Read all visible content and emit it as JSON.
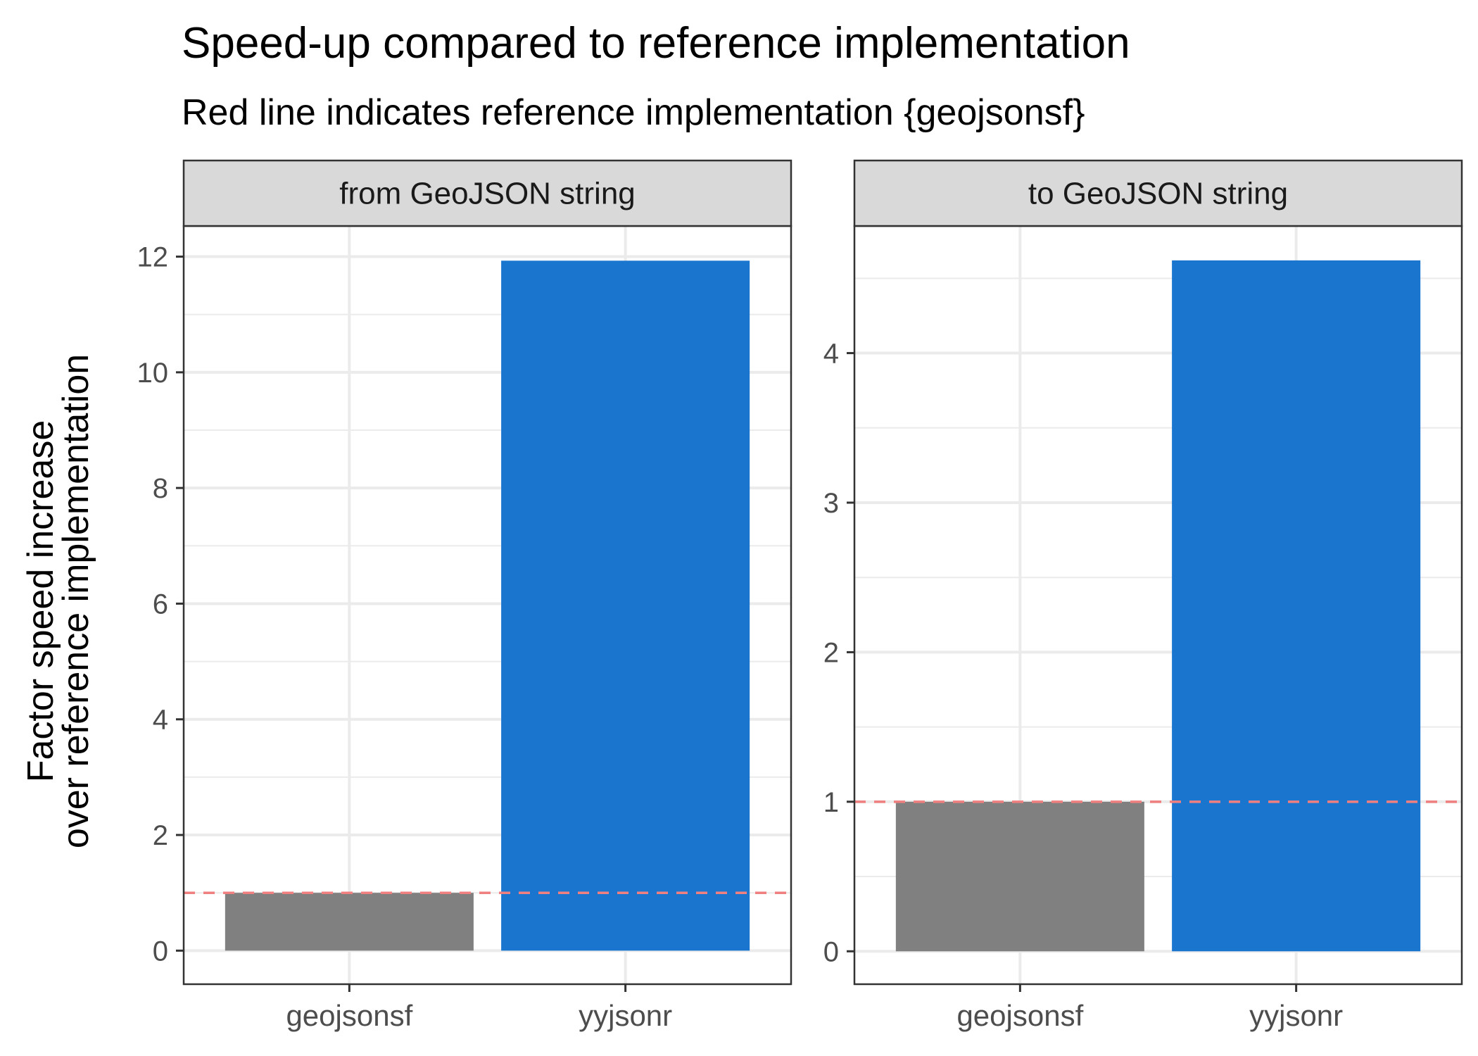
{
  "title": "Speed-up compared to reference implementation",
  "subtitle": "Red line indicates reference implementation {geojsonsf}",
  "ylabel_line1": "Factor speed increase",
  "ylabel_line2": "over reference implementation",
  "chart_data": [
    {
      "type": "bar",
      "facet": "from GeoJSON string",
      "categories": [
        "geojsonsf",
        "yyjsonr"
      ],
      "values": [
        1,
        11.93
      ],
      "ylim": [
        -0.58,
        12.53
      ],
      "yticks": [
        0,
        2,
        4,
        6,
        8,
        10,
        12
      ],
      "reference_line": 1,
      "grid": true
    },
    {
      "type": "bar",
      "facet": "to GeoJSON string",
      "categories": [
        "geojsonsf",
        "yyjsonr"
      ],
      "values": [
        1,
        4.62
      ],
      "ylim": [
        -0.22,
        4.85
      ],
      "yticks": [
        0,
        1,
        2,
        3,
        4
      ],
      "reference_line": 1,
      "grid": true
    }
  ],
  "colors": {
    "geojsonsf": "#808080",
    "yyjsonr": "#1a75cf",
    "reference_line": "#f08080",
    "strip_fill": "#d9d9d9",
    "panel_border": "#333333",
    "grid": "#ebebeb"
  }
}
